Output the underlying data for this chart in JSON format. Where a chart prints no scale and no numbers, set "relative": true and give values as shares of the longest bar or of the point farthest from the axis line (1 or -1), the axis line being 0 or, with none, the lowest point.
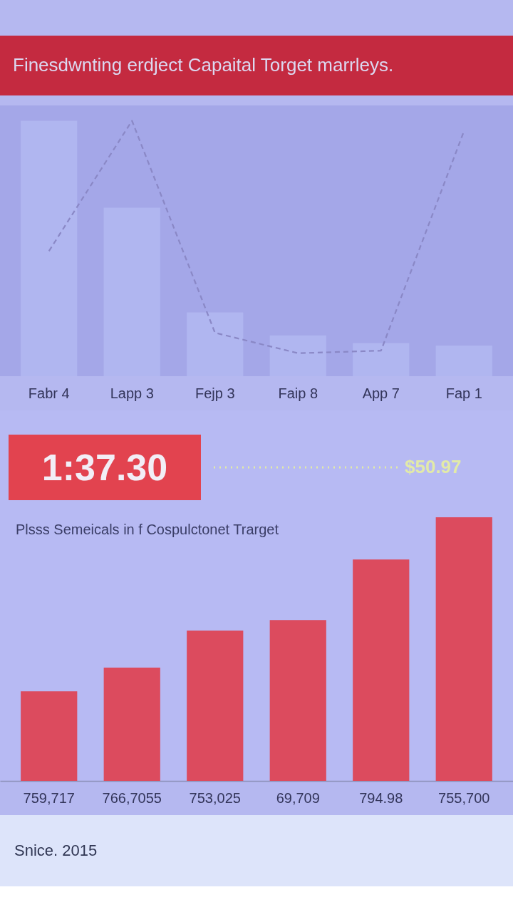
{
  "chart_data": [
    {
      "type": "bar",
      "title": "Finesdwnting erdject Capaital Torget marrleys.",
      "categories": [
        "Fabr 4",
        "Lapp 3",
        "Fejp 3",
        "Faip 8",
        "App 7",
        "Fap 1"
      ],
      "relative": true,
      "line_style": "dashed",
      "series": [
        {
          "type": "bar",
          "color": "#b0b6f0",
          "values": [
            1,
            0.66,
            0.25,
            0.16,
            0.13,
            0.12
          ]
        },
        {
          "type": "line",
          "color": "#8a88c6",
          "values": [
            0.49,
            1.0,
            0.17,
            0.09,
            0.1,
            0.96
          ]
        }
      ]
    },
    {
      "type": "bar",
      "subtitle": "Plsss Semeicals in f Cospulctonet Trarget",
      "categories": [
        "759,717",
        "766,7055",
        "753,025",
        "69,709",
        "794.98",
        "755,700"
      ],
      "relative": true,
      "values": [
        0.34,
        0.43,
        0.57,
        0.61,
        0.84,
        1
      ],
      "color": "#dc4b5e",
      "annotations": [
        "1:37.30",
        "$50.97",
        "Snice. 2015"
      ]
    }
  ]
}
